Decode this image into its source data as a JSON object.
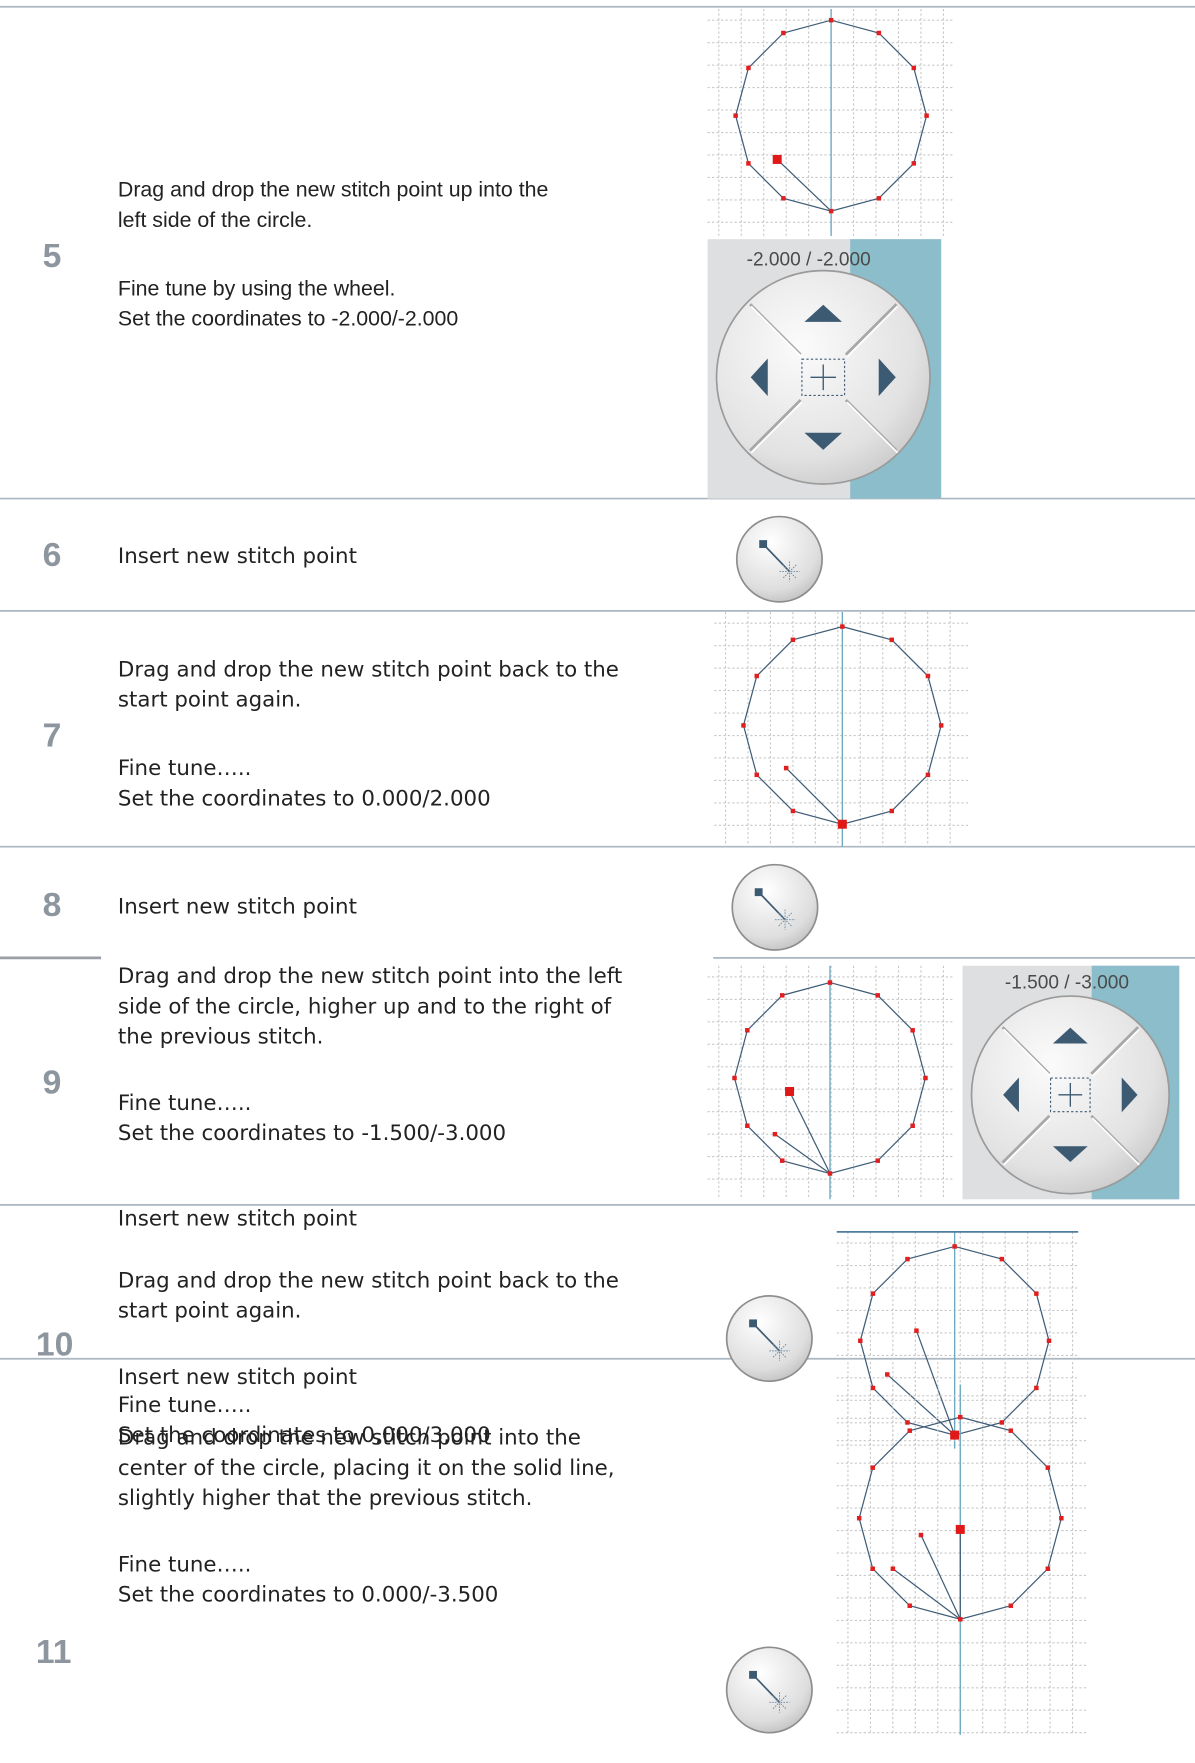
{
  "steps": [
    {
      "number": "5",
      "paragraphs": [
        [
          "Drag and drop the new stitch point up into the",
          "left side of the circle."
        ],
        [
          "Fine tune by using the wheel.",
          "Set the coordinates to -2.000/-2.000"
        ]
      ],
      "wheel_label": "-2.000 / -2.000"
    },
    {
      "number": "6",
      "paragraphs": [
        [
          "Insert new stitch point"
        ]
      ]
    },
    {
      "number": "7",
      "paragraphs": [
        [
          "Drag and drop the new stitch point back to the",
          "start point again."
        ],
        [
          "Fine tune…..",
          "Set the coordinates to 0.000/2.000"
        ]
      ]
    },
    {
      "number": "8",
      "paragraphs": [
        [
          "Insert new stitch point"
        ]
      ]
    },
    {
      "number": "9",
      "paragraphs": [
        [
          "Drag and drop the new stitch point into the left",
          "side of the circle, higher up and to the right of",
          "the previous stitch."
        ],
        [
          "Fine tune…..",
          "Set the coordinates to -1.500/-3.000"
        ]
      ],
      "wheel_label": "-1.500 / -3.000"
    },
    {
      "number": "10",
      "paragraphs": [
        [
          "Insert new stitch point"
        ],
        [
          "Drag and drop the new stitch point back to the",
          "start point again."
        ],
        [
          "Fine tune…..",
          "Set the coordinates to 0,000/3,000"
        ]
      ]
    },
    {
      "number": "11",
      "paragraphs": [
        [
          "Insert new stitch point"
        ],
        [
          "Drag and drop the new stitch point into the",
          "center of the circle, placing it on the solid line,",
          "slightly higher that the previous stitch."
        ],
        [
          "Fine tune…..",
          "Set the coordinates to 0.000/-3.500"
        ]
      ]
    }
  ]
}
